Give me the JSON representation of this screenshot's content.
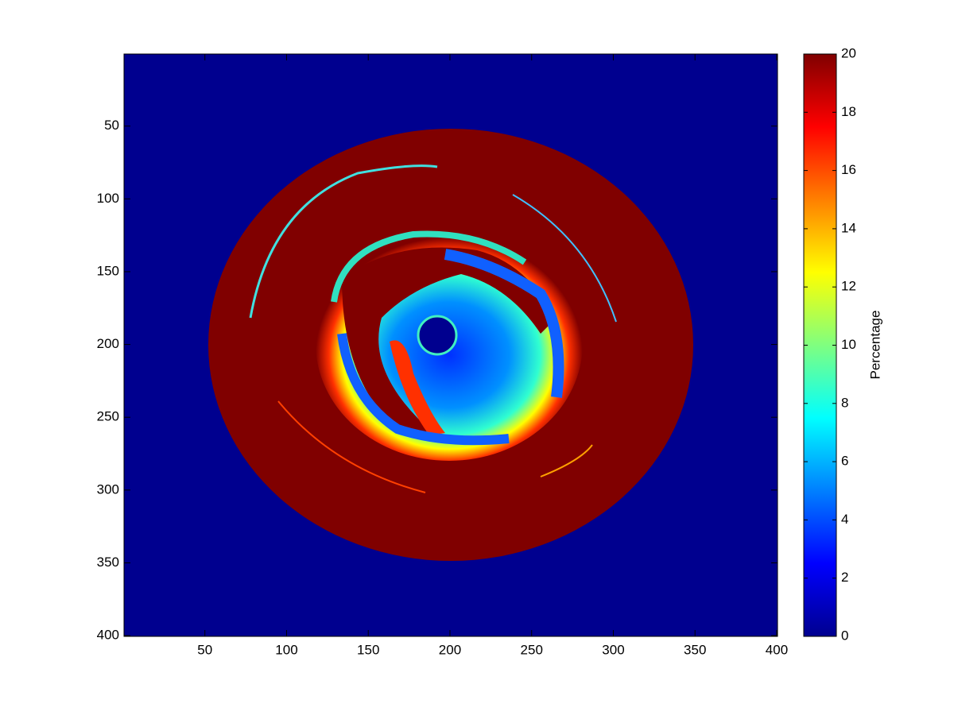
{
  "chart_data": {
    "type": "heatmap",
    "colormap": "jet",
    "y_reversed": true,
    "xlim": [
      0.5,
      400.5
    ],
    "ylim": [
      0.5,
      400.5
    ],
    "xticks": [
      50,
      100,
      150,
      200,
      250,
      300,
      350,
      400
    ],
    "yticks": [
      50,
      100,
      150,
      200,
      250,
      300,
      350,
      400
    ],
    "colorbar": {
      "label": "Percentage",
      "clim": [
        0,
        20
      ],
      "ticks": [
        0,
        2,
        4,
        6,
        8,
        10,
        12,
        14,
        16,
        18,
        20
      ]
    }
  }
}
